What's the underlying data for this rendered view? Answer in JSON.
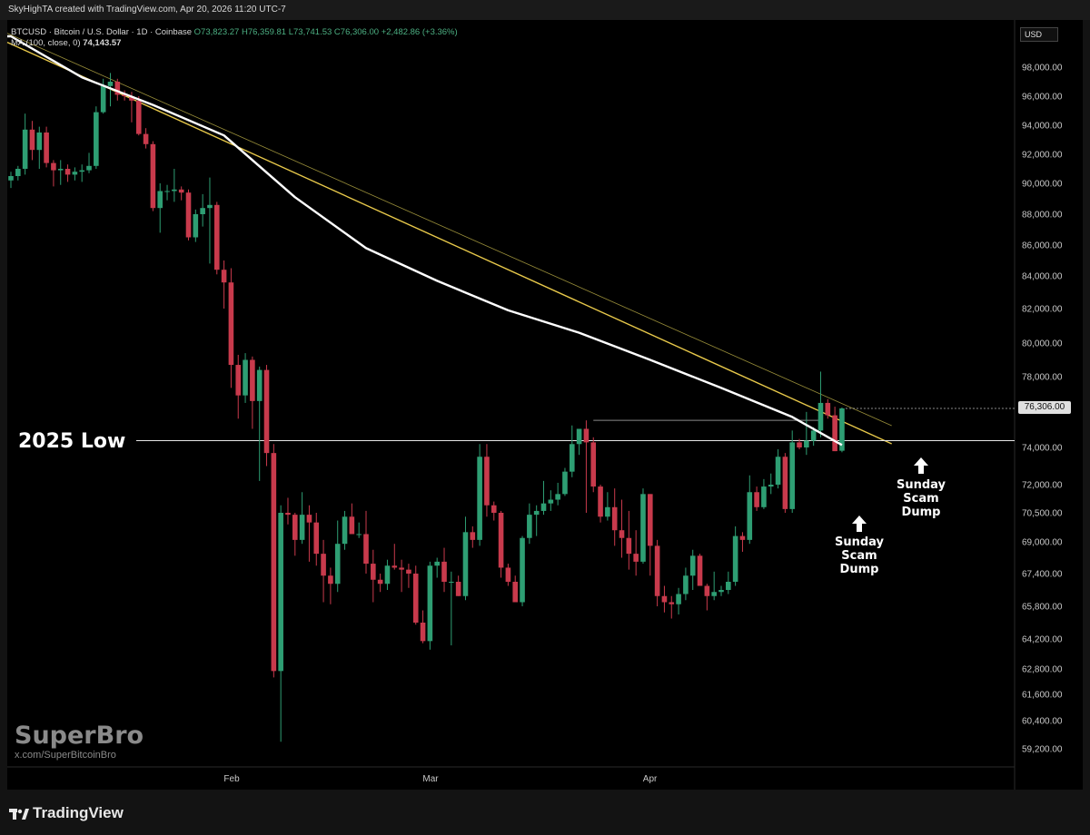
{
  "header": {
    "caption": "SkyHighTA created with TradingView.com, Apr 20, 2026 11:20 UTC-7"
  },
  "legend": {
    "symbol": "BTCUSD · Bitcoin / U.S. Dollar · 1D · Coinbase",
    "open": "O73,823.27",
    "high": "H76,359.81",
    "low": "L73,741.53",
    "close": "C76,306.00",
    "change": "+2,482.86 (+3.36%)",
    "ma_label": "MA (100, close, 0)",
    "ma_value": "74,143.57"
  },
  "currency_button": "USD",
  "last_price_tag": "76,306.00",
  "annotations": {
    "low_label": "2025 Low",
    "dump1": [
      "Sunday",
      "Scam",
      "Dump"
    ],
    "dump2": [
      "Sunday",
      "Scam",
      "Dump"
    ]
  },
  "watermark": {
    "name": "SuperBro",
    "url": "x.com/SuperBitcoinBro"
  },
  "footer": {
    "brand": "TradingView"
  },
  "colors": {
    "up": "#2e9e73",
    "down": "#c83a4c",
    "ma": "#ffffff",
    "trendline": "#e7c84a",
    "background": "#000000"
  },
  "chart_data": {
    "type": "candlestick",
    "symbol": "BTCUSD",
    "timeframe": "1D",
    "y_ticks": [
      "98,000.00",
      "96,000.00",
      "94,000.00",
      "92,000.00",
      "90,000.00",
      "88,000.00",
      "86,000.00",
      "84,000.00",
      "82,000.00",
      "80,000.00",
      "78,000.00",
      "76,306.00",
      "74,000.00",
      "72,000.00",
      "70,500.00",
      "69,000.00",
      "67,400.00",
      "65,800.00",
      "64,200.00",
      "62,800.00",
      "61,600.00",
      "60,400.00",
      "59,200.00"
    ],
    "x_ticks": [
      "Feb",
      "Mar",
      "Apr"
    ],
    "first_date": "2026-01-01",
    "ohlc": [
      [
        90200,
        90800,
        89700,
        90500
      ],
      [
        90500,
        91200,
        90200,
        91000
      ],
      [
        91000,
        94800,
        90600,
        93700
      ],
      [
        93700,
        94300,
        91600,
        92300
      ],
      [
        92300,
        93900,
        91000,
        93500
      ],
      [
        93500,
        93900,
        91100,
        91400
      ],
      [
        91400,
        91600,
        89800,
        90900
      ],
      [
        90900,
        91600,
        89900,
        91000
      ],
      [
        91000,
        91300,
        90100,
        90600
      ],
      [
        90600,
        91100,
        90200,
        90800
      ],
      [
        90800,
        91300,
        90100,
        90900
      ],
      [
        90900,
        92100,
        90700,
        91200
      ],
      [
        91200,
        95300,
        91000,
        94900
      ],
      [
        94900,
        97200,
        94800,
        96700
      ],
      [
        96700,
        97600,
        95300,
        97000
      ],
      [
        97000,
        97200,
        95700,
        96100
      ],
      [
        96100,
        96400,
        95700,
        96000
      ],
      [
        96000,
        96300,
        94200,
        95700
      ],
      [
        95700,
        96000,
        93300,
        93400
      ],
      [
        93400,
        93800,
        92400,
        92700
      ],
      [
        92700,
        92900,
        88200,
        88400
      ],
      [
        88400,
        90000,
        86800,
        89500
      ],
      [
        89500,
        89900,
        88900,
        89500
      ],
      [
        89500,
        91000,
        88800,
        89600
      ],
      [
        89600,
        89800,
        88900,
        89400
      ],
      [
        89400,
        89600,
        86300,
        86500
      ],
      [
        86500,
        88300,
        86200,
        88000
      ],
      [
        88000,
        89300,
        87200,
        88400
      ],
      [
        88400,
        90400,
        84800,
        88600
      ],
      [
        88600,
        88800,
        84100,
        84400
      ],
      [
        84400,
        85000,
        82000,
        83600
      ],
      [
        83600,
        84500,
        77400,
        78700
      ],
      [
        78700,
        79300,
        75700,
        77000
      ],
      [
        77000,
        79400,
        76600,
        79000
      ],
      [
        79000,
        79200,
        75100,
        76700
      ],
      [
        76700,
        78600,
        72200,
        78400
      ],
      [
        78400,
        78700,
        73000,
        73700
      ],
      [
        73700,
        74200,
        62400,
        62700
      ],
      [
        62700,
        70900,
        59500,
        70500
      ],
      [
        70500,
        71300,
        69900,
        70400
      ],
      [
        70400,
        70500,
        68300,
        69100
      ],
      [
        69100,
        71600,
        68900,
        70400
      ],
      [
        70400,
        70900,
        68000,
        70000
      ],
      [
        70000,
        70500,
        67800,
        68400
      ],
      [
        68400,
        69100,
        66000,
        67300
      ],
      [
        67300,
        67700,
        65900,
        66900
      ],
      [
        66900,
        70100,
        66500,
        68900
      ],
      [
        68900,
        70600,
        68600,
        70300
      ],
      [
        70300,
        71000,
        69800,
        69400
      ],
      [
        69400,
        70000,
        69200,
        69400
      ],
      [
        69400,
        70600,
        67400,
        67900
      ],
      [
        67900,
        68600,
        66000,
        67100
      ],
      [
        67100,
        67400,
        66500,
        66900
      ],
      [
        66900,
        68100,
        66600,
        67800
      ],
      [
        67800,
        68900,
        67600,
        67700
      ],
      [
        67700,
        68100,
        66500,
        67600
      ],
      [
        67600,
        67900,
        66700,
        67400
      ],
      [
        67400,
        67800,
        64900,
        65000
      ],
      [
        65000,
        65600,
        64000,
        64100
      ],
      [
        64100,
        68000,
        63700,
        67800
      ],
      [
        67800,
        68200,
        67200,
        68000
      ],
      [
        68000,
        68700,
        66500,
        67000
      ],
      [
        67000,
        67500,
        63900,
        67000
      ],
      [
        67000,
        67300,
        66300,
        66300
      ],
      [
        66300,
        70300,
        66100,
        69500
      ],
      [
        69500,
        69800,
        68700,
        69100
      ],
      [
        69100,
        74200,
        68800,
        73500
      ],
      [
        73500,
        74200,
        70300,
        70900
      ],
      [
        70900,
        71100,
        70100,
        70500
      ],
      [
        70500,
        70600,
        67200,
        67700
      ],
      [
        67700,
        67900,
        66800,
        67000
      ],
      [
        67000,
        67300,
        66200,
        66000
      ],
      [
        66000,
        69300,
        65800,
        69200
      ],
      [
        69200,
        71000,
        68900,
        70400
      ],
      [
        70400,
        70900,
        69300,
        70600
      ],
      [
        70600,
        72200,
        70400,
        71000
      ],
      [
        71000,
        71700,
        70600,
        71200
      ],
      [
        71200,
        72100,
        70900,
        71500
      ],
      [
        71500,
        72900,
        71400,
        72700
      ],
      [
        72700,
        75300,
        72400,
        74200
      ],
      [
        74200,
        74900,
        73600,
        75100
      ],
      [
        75100,
        75600,
        70500,
        74300
      ],
      [
        74300,
        74600,
        71600,
        71900
      ],
      [
        71900,
        72000,
        70000,
        70300
      ],
      [
        70300,
        71600,
        70100,
        70800
      ],
      [
        70800,
        71800,
        68800,
        69600
      ],
      [
        69600,
        71200,
        68200,
        69200
      ],
      [
        69200,
        70600,
        67600,
        68400
      ],
      [
        68400,
        69600,
        67300,
        68000
      ],
      [
        68000,
        71800,
        67900,
        71500
      ],
      [
        71500,
        71500,
        67300,
        68800
      ],
      [
        68800,
        69100,
        65800,
        66300
      ],
      [
        66300,
        66800,
        65500,
        66000
      ],
      [
        66000,
        66300,
        65200,
        65900
      ],
      [
        65900,
        66700,
        65400,
        66400
      ],
      [
        66400,
        67700,
        66100,
        67300
      ],
      [
        67300,
        68600,
        66600,
        68300
      ],
      [
        68300,
        68400,
        66800,
        66800
      ],
      [
        66800,
        66900,
        65600,
        66300
      ],
      [
        66300,
        67500,
        66100,
        66500
      ],
      [
        66500,
        66800,
        66300,
        66600
      ],
      [
        66600,
        67500,
        66400,
        67000
      ],
      [
        67000,
        69800,
        66800,
        69300
      ],
      [
        69300,
        69500,
        68500,
        69100
      ],
      [
        69100,
        72500,
        68900,
        71600
      ],
      [
        71600,
        71900,
        70600,
        70800
      ],
      [
        70800,
        72300,
        70700,
        71900
      ],
      [
        71900,
        72600,
        71500,
        72000
      ],
      [
        72000,
        73900,
        71800,
        73500
      ],
      [
        73500,
        73700,
        70500,
        70700
      ],
      [
        70700,
        75000,
        70500,
        74300
      ],
      [
        74300,
        74500,
        73900,
        74000
      ],
      [
        74000,
        76100,
        73600,
        74400
      ],
      [
        74400,
        75200,
        74100,
        75000
      ],
      [
        75000,
        78300,
        74600,
        76600
      ],
      [
        76600,
        76800,
        75700,
        75900
      ],
      [
        75900,
        76400,
        73800,
        73800
      ],
      [
        73823,
        76360,
        73741,
        76306
      ]
    ],
    "ma_100": [
      [
        0,
        99300
      ],
      [
        10,
        97300
      ],
      [
        20,
        95400
      ],
      [
        30,
        93300
      ],
      [
        40,
        89100
      ],
      [
        50,
        85800
      ],
      [
        60,
        83700
      ],
      [
        70,
        81900
      ],
      [
        80,
        80600
      ],
      [
        90,
        79000
      ],
      [
        100,
        77400
      ],
      [
        110,
        75800
      ],
      [
        117,
        74143.57
      ]
    ],
    "trendline": {
      "from": [
        "2026-01-01",
        99200
      ],
      "to": [
        "2026-05-05",
        74000
      ]
    },
    "horizontal_lines": [
      {
        "label": "2025 Low",
        "value": 74400
      }
    ],
    "resistance_segment": {
      "value": 75600,
      "from_index": 82,
      "to_index": 114
    },
    "ylim": [
      58500,
      99300
    ]
  }
}
